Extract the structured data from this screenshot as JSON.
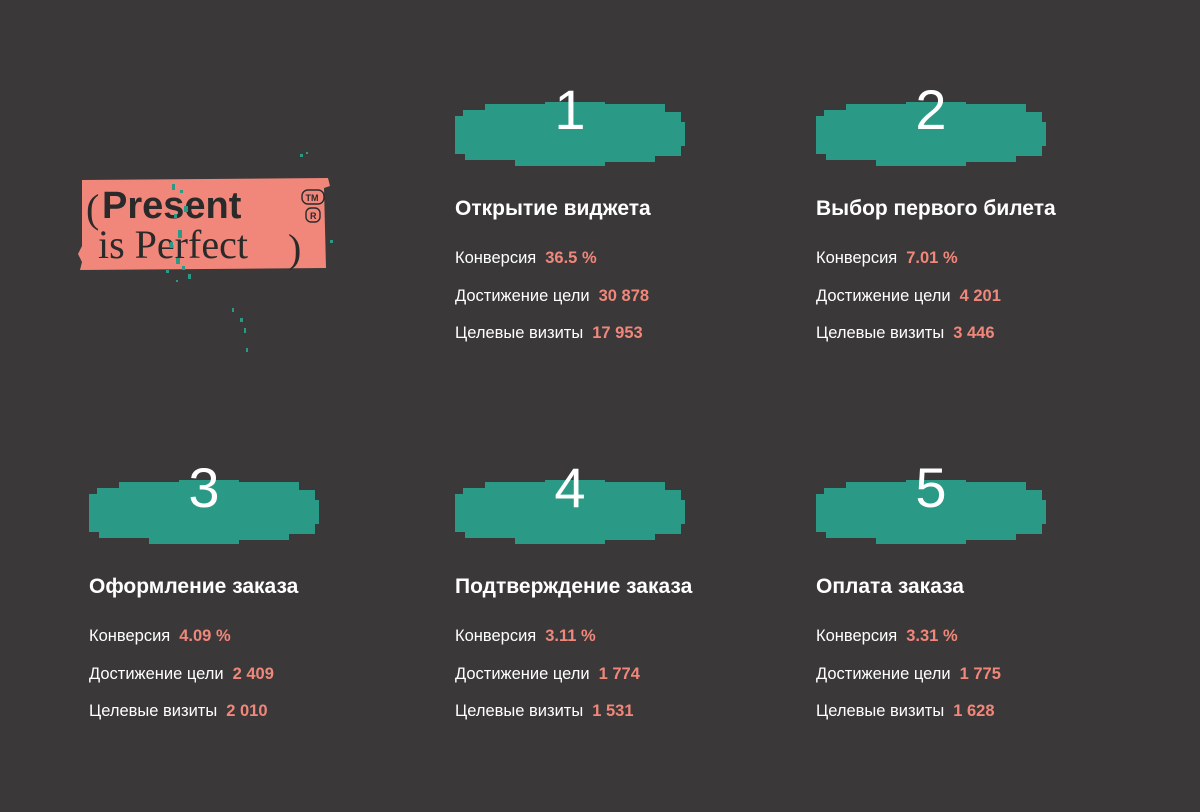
{
  "logo": {
    "line1": "Present",
    "line2": "is Perfect",
    "tm": "TM",
    "reg": "R",
    "accent": "#f0877a",
    "pixel_color": "#2a9a86"
  },
  "colors": {
    "background": "#3a3839",
    "banner": "#2a9a86",
    "value": "#f0877a"
  },
  "steps": [
    {
      "number": "1",
      "title": "Открытие виджета",
      "metrics": [
        {
          "label": "Конверсия",
          "value": "36.5 %"
        },
        {
          "label": "Достижение цели",
          "value": "30 878"
        },
        {
          "label": "Целевые визиты",
          "value": "17 953"
        }
      ]
    },
    {
      "number": "2",
      "title": "Выбор первого билета",
      "metrics": [
        {
          "label": "Конверсия",
          "value": "7.01 %"
        },
        {
          "label": "Достижение цели",
          "value": "4 201"
        },
        {
          "label": "Целевые визиты",
          "value": "3 446"
        }
      ]
    },
    {
      "number": "3",
      "title": "Оформление заказа",
      "metrics": [
        {
          "label": "Конверсия",
          "value": "4.09 %"
        },
        {
          "label": "Достижение цели",
          "value": "2 409"
        },
        {
          "label": "Целевые визиты",
          "value": "2 010"
        }
      ]
    },
    {
      "number": "4",
      "title": "Подтверждение заказа",
      "metrics": [
        {
          "label": "Конверсия",
          "value": "3.11 %"
        },
        {
          "label": "Достижение цели",
          "value": "1 774"
        },
        {
          "label": "Целевые визиты",
          "value": "1 531"
        }
      ]
    },
    {
      "number": "5",
      "title": "Оплата заказа",
      "metrics": [
        {
          "label": "Конверсия",
          "value": "3.31 %"
        },
        {
          "label": "Достижение цели",
          "value": "1 775"
        },
        {
          "label": "Целевые визиты",
          "value": "1 628"
        }
      ]
    }
  ]
}
